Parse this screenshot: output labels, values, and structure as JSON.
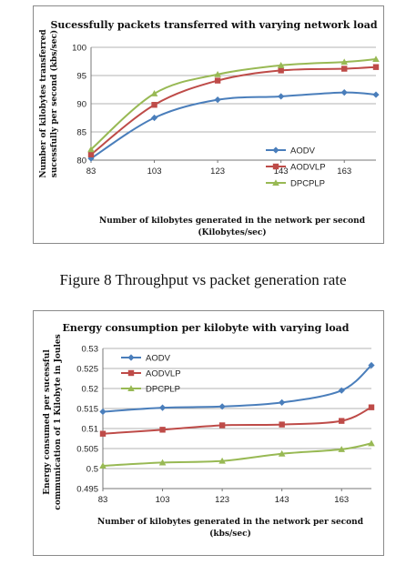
{
  "caption": "Figure 8 Throughput vs packet generation rate",
  "chart_data": [
    {
      "type": "line",
      "title": "Sucessfully packets transferred with varying network load",
      "xlabel_lines": [
        "Number of kilobytes generated in the network per second",
        "(Kilobytes/sec)"
      ],
      "ylabel_lines": [
        "Number of kilobytes transferred",
        "sucessfully per second (kbs/sec)"
      ],
      "x": [
        83,
        103,
        123,
        143,
        163,
        173
      ],
      "x_ticks": [
        "83",
        "103",
        "123",
        "143",
        "163"
      ],
      "y_ticks": [
        "80",
        "85",
        "90",
        "95",
        "100"
      ],
      "xlim": [
        83,
        173
      ],
      "ylim": [
        80,
        100
      ],
      "grid": "horizontal",
      "legend_position": "right",
      "series": [
        {
          "name": "AODV",
          "color": "#4a7ebb",
          "marker": "diamond",
          "values": [
            80.3,
            87.5,
            90.7,
            91.3,
            92.0,
            91.6
          ]
        },
        {
          "name": "AODVLP",
          "color": "#be4b48",
          "marker": "square",
          "values": [
            81.0,
            89.8,
            94.1,
            95.9,
            96.2,
            96.5
          ]
        },
        {
          "name": "DPCPLP",
          "color": "#98b954",
          "marker": "triangle",
          "values": [
            81.9,
            91.8,
            95.2,
            96.8,
            97.4,
            97.9
          ]
        }
      ]
    },
    {
      "type": "line",
      "title": "Energy consumption per kilobyte with varying load",
      "xlabel_lines": [
        "Number of kilobytes generated in the network per second",
        "(kbs/sec)"
      ],
      "ylabel_lines": [
        "Energy consumed per sucessful",
        "communication of 1 Kilobyte in Joules"
      ],
      "x": [
        83,
        103,
        123,
        143,
        163,
        173
      ],
      "x_ticks": [
        "83",
        "103",
        "123",
        "143",
        "163"
      ],
      "y_ticks": [
        "0.495",
        "0.5",
        "0.505",
        "0.51",
        "0.515",
        "0.52",
        "0.525",
        "0.53"
      ],
      "xlim": [
        83,
        173
      ],
      "ylim": [
        0.495,
        0.53
      ],
      "grid": "horizontal",
      "legend_position": "top-left",
      "series": [
        {
          "name": "AODV",
          "color": "#4a7ebb",
          "marker": "diamond",
          "values": [
            0.5142,
            0.5152,
            0.5155,
            0.5165,
            0.5195,
            0.5258
          ]
        },
        {
          "name": "AODVLP",
          "color": "#be4b48",
          "marker": "square",
          "values": [
            0.5087,
            0.5097,
            0.5108,
            0.511,
            0.5119,
            0.5153
          ]
        },
        {
          "name": "DPCPLP",
          "color": "#98b954",
          "marker": "triangle",
          "values": [
            0.5007,
            0.5015,
            0.5019,
            0.5037,
            0.5048,
            0.5063
          ]
        }
      ]
    }
  ]
}
